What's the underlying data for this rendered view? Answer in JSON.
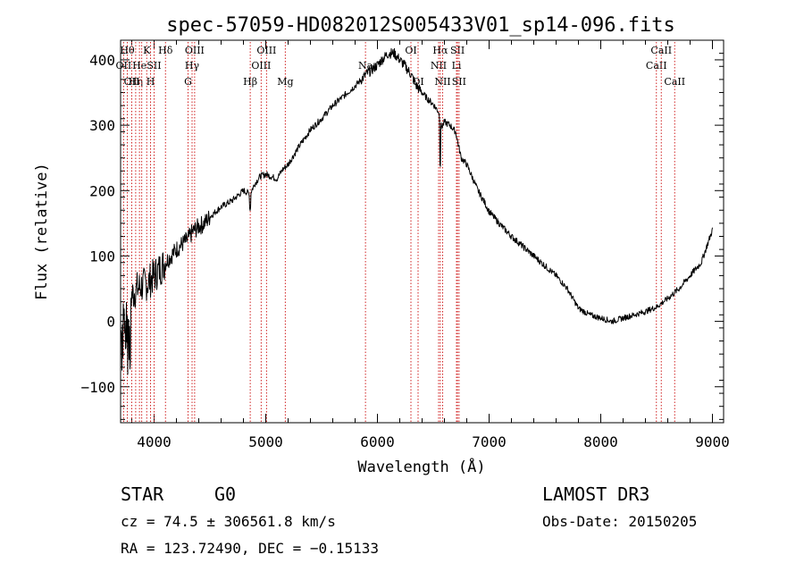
{
  "chart_data": {
    "type": "line",
    "title": "spec-57059-HD082012S005433V01_sp14-096.fits",
    "xlabel": "Wavelength (Å)",
    "ylabel": "Flux (relative)",
    "xlim": [
      3700,
      9100
    ],
    "ylim": [
      -155,
      430
    ],
    "x_ticks": [
      4000,
      5000,
      6000,
      7000,
      8000,
      9000
    ],
    "x_tick_labels": [
      "4000",
      "5000",
      "6000",
      "7000",
      "8000",
      "9000"
    ],
    "y_ticks": [
      -100,
      0,
      100,
      200,
      300,
      400
    ],
    "y_tick_labels": [
      "−100",
      "0",
      "100",
      "200",
      "300",
      "400"
    ],
    "series": [
      {
        "name": "flux",
        "x": [
          3700,
          3750,
          3800,
          3850,
          3900,
          3950,
          4000,
          4050,
          4100,
          4150,
          4200,
          4250,
          4300,
          4350,
          4400,
          4450,
          4500,
          4600,
          4700,
          4800,
          4860,
          4900,
          4950,
          5000,
          5100,
          5150,
          5200,
          5300,
          5400,
          5500,
          5600,
          5700,
          5800,
          5900,
          6000,
          6050,
          6100,
          6150,
          6200,
          6250,
          6300,
          6350,
          6400,
          6450,
          6500,
          6550,
          6563,
          6580,
          6600,
          6650,
          6700,
          6750,
          6800,
          6850,
          6900,
          6950,
          7000,
          7100,
          7200,
          7300,
          7400,
          7500,
          7600,
          7700,
          7800,
          7900,
          8000,
          8100,
          8200,
          8300,
          8400,
          8500,
          8600,
          8700,
          8800,
          8900,
          8950,
          9000
        ],
        "y": [
          30,
          20,
          40,
          50,
          55,
          60,
          70,
          80,
          90,
          100,
          110,
          118,
          125,
          138,
          145,
          150,
          160,
          175,
          185,
          200,
          195,
          210,
          222,
          225,
          218,
          232,
          240,
          268,
          293,
          310,
          330,
          345,
          360,
          378,
          392,
          402,
          410,
          410,
          400,
          390,
          378,
          360,
          350,
          340,
          332,
          320,
          300,
          298,
          305,
          300,
          290,
          250,
          240,
          220,
          200,
          185,
          168,
          148,
          130,
          115,
          100,
          85,
          70,
          50,
          20,
          10,
          5,
          0,
          5,
          10,
          15,
          22,
          35,
          50,
          70,
          90,
          115,
          140
        ]
      }
    ],
    "lines": [
      {
        "wl": 3727,
        "label": "OII",
        "row": 1
      },
      {
        "wl": 3760,
        "label": "Hθ",
        "row": 0
      },
      {
        "wl": 3800,
        "label": "OII",
        "row": 2
      },
      {
        "wl": 3835,
        "label": "Hη",
        "row": 2
      },
      {
        "wl": 3869,
        "label": "He",
        "row": 1
      },
      {
        "wl": 3889,
        "label": "",
        "row": 1
      },
      {
        "wl": 3934,
        "label": "K",
        "row": 0
      },
      {
        "wl": 3968,
        "label": "H",
        "row": 2
      },
      {
        "wl": 4000,
        "label": "SII",
        "row": 1
      },
      {
        "wl": 4102,
        "label": "Hδ",
        "row": 0
      },
      {
        "wl": 4304,
        "label": "G",
        "row": 2
      },
      {
        "wl": 4340,
        "label": "Hγ",
        "row": 1
      },
      {
        "wl": 4363,
        "label": "OIII",
        "row": 0
      },
      {
        "wl": 4861,
        "label": "Hβ",
        "row": 2
      },
      {
        "wl": 4959,
        "label": "OIII",
        "row": 1
      },
      {
        "wl": 5007,
        "label": "OIII",
        "row": 0
      },
      {
        "wl": 5175,
        "label": "Mg",
        "row": 2
      },
      {
        "wl": 5893,
        "label": "Na",
        "row": 1
      },
      {
        "wl": 6300,
        "label": "OI",
        "row": 0
      },
      {
        "wl": 6364,
        "label": "OI",
        "row": 2
      },
      {
        "wl": 6548,
        "label": "NII",
        "row": 1
      },
      {
        "wl": 6563,
        "label": "Hα",
        "row": 0
      },
      {
        "wl": 6584,
        "label": "NII",
        "row": 2
      },
      {
        "wl": 6708,
        "label": "Li",
        "row": 1
      },
      {
        "wl": 6717,
        "label": "SII",
        "row": 0
      },
      {
        "wl": 6731,
        "label": "SII",
        "row": 2
      },
      {
        "wl": 8498,
        "label": "CaII",
        "row": 1
      },
      {
        "wl": 8542,
        "label": "CaII",
        "row": 0
      },
      {
        "wl": 8662,
        "label": "CaII",
        "row": 2
      }
    ]
  },
  "info": {
    "object_class": "STAR",
    "subclass": "G0",
    "survey": "LAMOST DR3",
    "cz": "cz = 74.5 ± 306561.8 km/s",
    "obs_date": "Obs-Date: 20150205",
    "coords": "RA = 123.72490, DEC =  −0.15133"
  }
}
